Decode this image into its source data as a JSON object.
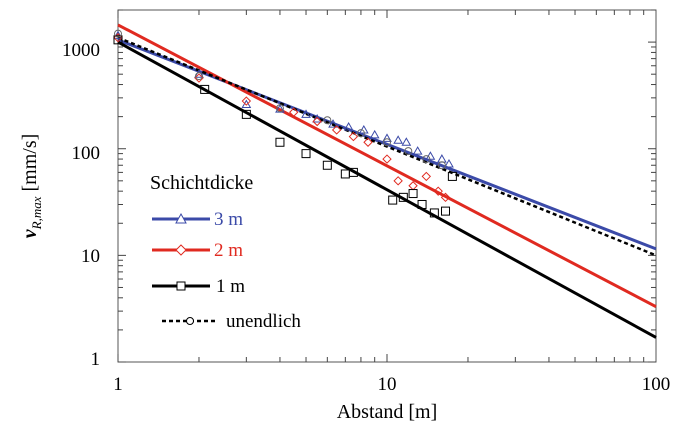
{
  "chart_data": {
    "type": "line",
    "x_scale": "log",
    "y_scale": "log",
    "xlim": [
      1,
      100
    ],
    "ylim": [
      1,
      2000
    ],
    "xlabel": "Abstand [m]",
    "ylabel": "v",
    "ylabel_sub": "R,max",
    "ylabel_unit": " [mm/s]",
    "x_ticks": [
      1,
      10,
      100
    ],
    "x_tick_labels": [
      "1",
      "10",
      "100"
    ],
    "y_ticks": [
      1,
      10,
      100,
      1000
    ],
    "y_tick_labels": [
      "1",
      "10",
      "100",
      "1000"
    ],
    "grid": false,
    "legend": {
      "title": "Schichtdicke",
      "position": "left-center"
    },
    "series": [
      {
        "name": "3 m",
        "color": "#3b4aa8",
        "marker": "triangle",
        "line_style": "solid",
        "fit": {
          "x": [
            1,
            100
          ],
          "y": [
            1050,
            11.5
          ]
        },
        "points": [
          [
            1.0,
            1150
          ],
          [
            2.0,
            500
          ],
          [
            3.0,
            260
          ],
          [
            4.0,
            235
          ],
          [
            5.0,
            210
          ],
          [
            5.5,
            190
          ],
          [
            6.3,
            170
          ],
          [
            7.2,
            160
          ],
          [
            8.2,
            150
          ],
          [
            9.0,
            135
          ],
          [
            10.0,
            125
          ],
          [
            11.0,
            120
          ],
          [
            11.8,
            115
          ],
          [
            13.0,
            95
          ],
          [
            14.5,
            85
          ],
          [
            16.0,
            80
          ],
          [
            17.0,
            72
          ]
        ]
      },
      {
        "name": "2 m",
        "color": "#e02a20",
        "marker": "diamond",
        "line_style": "solid",
        "fit": {
          "x": [
            1,
            100
          ],
          "y": [
            1450,
            3.3
          ]
        },
        "points": [
          [
            1.0,
            1100
          ],
          [
            2.0,
            460
          ],
          [
            3.0,
            280
          ],
          [
            4.5,
            220
          ],
          [
            5.5,
            180
          ],
          [
            6.5,
            150
          ],
          [
            7.5,
            130
          ],
          [
            8.5,
            115
          ],
          [
            10.0,
            80
          ],
          [
            11.0,
            50
          ],
          [
            12.5,
            45
          ],
          [
            14.0,
            55
          ],
          [
            15.5,
            40
          ],
          [
            16.5,
            35
          ]
        ]
      },
      {
        "name": "1 m",
        "color": "#000000",
        "marker": "square",
        "line_style": "solid",
        "fit": {
          "x": [
            1,
            100
          ],
          "y": [
            1000,
            1.7
          ]
        },
        "points": [
          [
            1.0,
            1050
          ],
          [
            2.1,
            360
          ],
          [
            3.0,
            210
          ],
          [
            4.0,
            115
          ],
          [
            5.0,
            90
          ],
          [
            6.0,
            70
          ],
          [
            7.0,
            58
          ],
          [
            7.5,
            60
          ],
          [
            10.5,
            33
          ],
          [
            11.5,
            35
          ],
          [
            12.5,
            38
          ],
          [
            13.5,
            30
          ],
          [
            15.0,
            25
          ],
          [
            16.5,
            26
          ],
          [
            17.5,
            55
          ]
        ]
      },
      {
        "name": "unendlich",
        "color": "#000000",
        "marker": "circle",
        "line_style": "dashed",
        "fit": {
          "x": [
            1,
            100
          ],
          "y": [
            1100,
            10
          ]
        },
        "points": [
          [
            1.0,
            1200
          ],
          [
            2.0,
            480
          ],
          [
            4.0,
            240
          ],
          [
            6.0,
            185
          ],
          [
            8.0,
            140
          ],
          [
            10.0,
            115
          ],
          [
            12.0,
            95
          ],
          [
            14.0,
            80
          ],
          [
            16.0,
            70
          ]
        ]
      }
    ]
  }
}
